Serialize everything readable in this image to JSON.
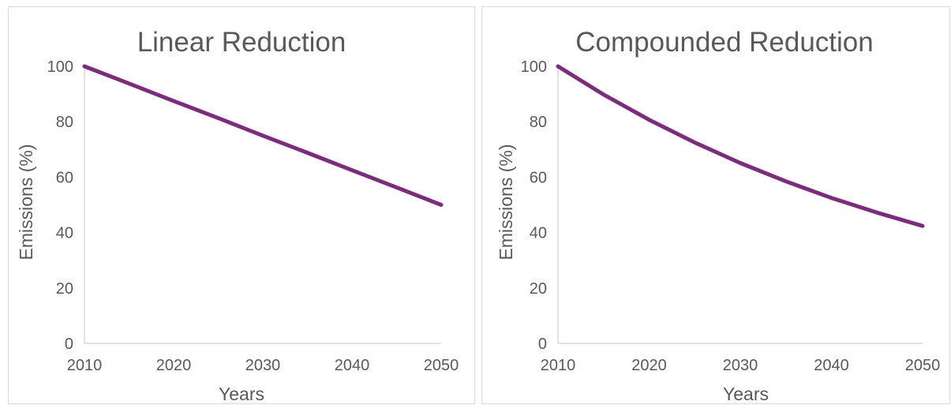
{
  "chart_data": [
    {
      "type": "line",
      "title": "Linear Reduction",
      "xlabel": "Years",
      "ylabel": "Emissions (%)",
      "xlim": [
        2010,
        2050
      ],
      "ylim": [
        0,
        100
      ],
      "x_ticks": [
        "2010",
        "2020",
        "2030",
        "2040",
        "2050"
      ],
      "y_ticks": [
        "0",
        "20",
        "40",
        "60",
        "80",
        "100"
      ],
      "grid": false,
      "series_color": "#7d2a7f",
      "series": [
        {
          "x": [
            2010,
            2015,
            2020,
            2025,
            2030,
            2035,
            2040,
            2045,
            2050
          ],
          "values": [
            100,
            93.8,
            87.5,
            81.3,
            75,
            68.8,
            62.5,
            56.3,
            50
          ]
        }
      ]
    },
    {
      "type": "line",
      "title": "Compounded Reduction",
      "xlabel": "Years",
      "ylabel": "Emissions (%)",
      "xlim": [
        2010,
        2050
      ],
      "ylim": [
        0,
        100
      ],
      "x_ticks": [
        "2010",
        "2020",
        "2030",
        "2040",
        "2050"
      ],
      "y_ticks": [
        "0",
        "20",
        "40",
        "60",
        "80",
        "100"
      ],
      "grid": false,
      "series_color": "#7d2a7f",
      "series": [
        {
          "x": [
            2010,
            2015,
            2020,
            2025,
            2030,
            2035,
            2040,
            2045,
            2050
          ],
          "values": [
            100,
            89.8,
            80.7,
            72.5,
            65.1,
            58.5,
            52.5,
            47.2,
            42.4
          ]
        }
      ]
    }
  ]
}
